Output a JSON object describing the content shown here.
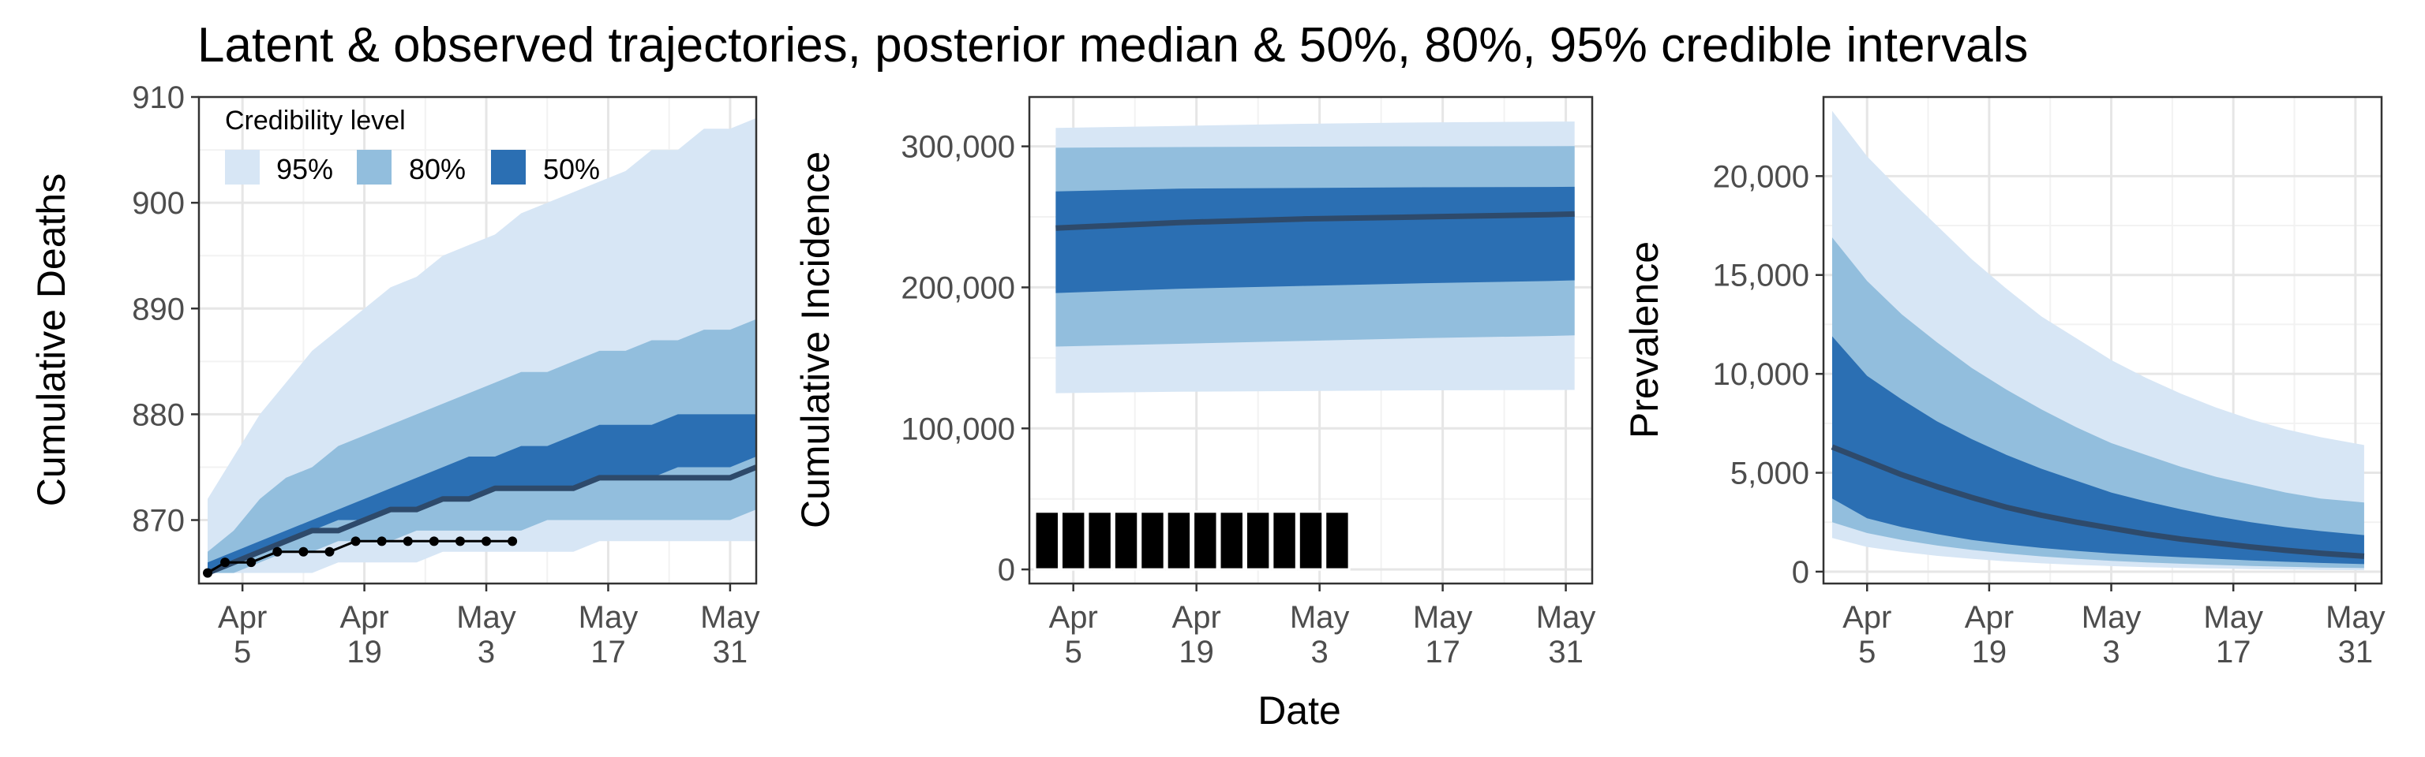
{
  "title": "Latent & observed trajectories, posterior median & 50%, 80%, 95% credible intervals",
  "xlabel": "Date",
  "colors": {
    "band95": "#d7e6f5",
    "band80": "#92bedd",
    "band50": "#2b6fb3",
    "median": "#2e4a6b",
    "observed": "#000000",
    "grid_major": "#e6e6e6",
    "grid_minor": "#f2f2f2"
  },
  "legend": {
    "title": "Credibility level",
    "items": [
      "95%",
      "80%",
      "50%"
    ],
    "placement": "top-left inside first panel"
  },
  "chart_data": [
    {
      "type": "area",
      "panel": "deaths",
      "ylabel": "Cumulative Deaths",
      "x_axis": "date",
      "xlim": [
        "2020-03-31",
        "2020-06-03"
      ],
      "ylim": [
        864,
        910
      ],
      "yticks": [
        870,
        880,
        890,
        900,
        910
      ],
      "yticklabels": [
        "870",
        "880",
        "890",
        "900",
        "910"
      ],
      "xticks": [
        "2020-04-05",
        "2020-04-19",
        "2020-05-03",
        "2020-05-17",
        "2020-05-31"
      ],
      "xticklabels": [
        [
          "Apr",
          "5"
        ],
        [
          "Apr",
          "19"
        ],
        [
          "May",
          "3"
        ],
        [
          "May",
          "17"
        ],
        [
          "May",
          "31"
        ]
      ],
      "grid": true,
      "x": [
        "2020-04-01",
        "2020-04-04",
        "2020-04-07",
        "2020-04-10",
        "2020-04-13",
        "2020-04-16",
        "2020-04-19",
        "2020-04-22",
        "2020-04-25",
        "2020-04-28",
        "2020-05-01",
        "2020-05-04",
        "2020-05-07",
        "2020-05-10",
        "2020-05-13",
        "2020-05-16",
        "2020-05-19",
        "2020-05-22",
        "2020-05-25",
        "2020-05-28",
        "2020-05-31",
        "2020-06-03"
      ],
      "q025": [
        865,
        865,
        865,
        865,
        865,
        866,
        866,
        866,
        866,
        867,
        867,
        867,
        867,
        867,
        867,
        868,
        868,
        868,
        868,
        868,
        868,
        868
      ],
      "q10": [
        865,
        865,
        866,
        867,
        867,
        868,
        868,
        868,
        869,
        869,
        869,
        869,
        869,
        870,
        870,
        870,
        870,
        870,
        870,
        870,
        870,
        871
      ],
      "q25": [
        865,
        866,
        867,
        868,
        869,
        870,
        870,
        871,
        871,
        872,
        872,
        873,
        873,
        873,
        873,
        874,
        874,
        874,
        875,
        875,
        875,
        876
      ],
      "median": [
        865,
        866,
        867,
        868,
        869,
        869,
        870,
        871,
        871,
        872,
        872,
        873,
        873,
        873,
        873,
        874,
        874,
        874,
        874,
        874,
        874,
        875
      ],
      "q75": [
        866,
        867,
        868,
        869,
        870,
        871,
        872,
        873,
        874,
        875,
        876,
        876,
        877,
        877,
        878,
        879,
        879,
        879,
        880,
        880,
        880,
        880
      ],
      "q90": [
        867,
        869,
        872,
        874,
        875,
        877,
        878,
        879,
        880,
        881,
        882,
        883,
        884,
        884,
        885,
        886,
        886,
        887,
        887,
        888,
        888,
        889
      ],
      "q975": [
        872,
        876,
        880,
        883,
        886,
        888,
        890,
        892,
        893,
        895,
        896,
        897,
        899,
        900,
        901,
        902,
        903,
        905,
        905,
        907,
        907,
        908
      ],
      "observed_x": [
        "2020-04-01",
        "2020-04-03",
        "2020-04-06",
        "2020-04-09",
        "2020-04-12",
        "2020-04-15",
        "2020-04-18",
        "2020-04-21",
        "2020-04-24",
        "2020-04-27",
        "2020-04-30",
        "2020-05-03",
        "2020-05-06"
      ],
      "observed_y": [
        865,
        866,
        866,
        867,
        867,
        867,
        868,
        868,
        868,
        868,
        868,
        868,
        868
      ]
    },
    {
      "type": "area",
      "panel": "incidence",
      "ylabel": "Cumulative Incidence",
      "x_axis": "date",
      "xlim": [
        "2020-03-31",
        "2020-06-03"
      ],
      "ylim": [
        -10000,
        335000
      ],
      "yticks": [
        0,
        100000,
        200000,
        300000
      ],
      "yticklabels": [
        "0",
        "100,000",
        "200,000",
        "300,000"
      ],
      "xticks": [
        "2020-04-05",
        "2020-04-19",
        "2020-05-03",
        "2020-05-17",
        "2020-05-31"
      ],
      "xticklabels": [
        [
          "Apr",
          "5"
        ],
        [
          "Apr",
          "19"
        ],
        [
          "May",
          "3"
        ],
        [
          "May",
          "17"
        ],
        [
          "May",
          "31"
        ]
      ],
      "grid": true,
      "x": [
        "2020-04-03",
        "2020-04-17",
        "2020-05-01",
        "2020-05-15",
        "2020-05-29",
        "2020-06-01"
      ],
      "q025": [
        125000,
        126000,
        126500,
        127000,
        127200,
        127300
      ],
      "q10": [
        158000,
        160000,
        162000,
        164000,
        165500,
        166000
      ],
      "q25": [
        196000,
        199000,
        201000,
        203000,
        204500,
        205000
      ],
      "median": [
        242000,
        246000,
        248500,
        250000,
        251500,
        252000
      ],
      "q75": [
        268000,
        270000,
        270500,
        271000,
        271200,
        271300
      ],
      "q90": [
        299000,
        299500,
        299800,
        300000,
        300100,
        300200
      ],
      "q975": [
        313000,
        314500,
        316000,
        317000,
        317500,
        317600
      ],
      "observed_bars_x": [
        "2020-04-02",
        "2020-04-05",
        "2020-04-08",
        "2020-04-11",
        "2020-04-14",
        "2020-04-17",
        "2020-04-20",
        "2020-04-23",
        "2020-04-26",
        "2020-04-29",
        "2020-05-02",
        "2020-05-05"
      ],
      "observed_bars_y": [
        41000,
        41000,
        41000,
        41000,
        41000,
        41000,
        41000,
        41000,
        41000,
        41000,
        41000,
        41000
      ]
    },
    {
      "type": "area",
      "panel": "prevalence",
      "ylabel": "Prevalence",
      "x_axis": "date",
      "xlim": [
        "2020-03-31",
        "2020-06-03"
      ],
      "ylim": [
        -600,
        24000
      ],
      "yticks": [
        0,
        5000,
        10000,
        15000,
        20000
      ],
      "yticklabels": [
        "0",
        "5,000",
        "10,000",
        "15,000",
        "20,000"
      ],
      "xticks": [
        "2020-04-05",
        "2020-04-19",
        "2020-05-03",
        "2020-05-17",
        "2020-05-31"
      ],
      "xticklabels": [
        [
          "Apr",
          "5"
        ],
        [
          "Apr",
          "19"
        ],
        [
          "May",
          "3"
        ],
        [
          "May",
          "17"
        ],
        [
          "May",
          "31"
        ]
      ],
      "grid": true,
      "x": [
        "2020-04-01",
        "2020-04-05",
        "2020-04-09",
        "2020-04-13",
        "2020-04-17",
        "2020-04-21",
        "2020-04-25",
        "2020-04-29",
        "2020-05-03",
        "2020-05-07",
        "2020-05-11",
        "2020-05-15",
        "2020-05-19",
        "2020-05-23",
        "2020-05-27",
        "2020-06-01"
      ],
      "q025": [
        1700,
        1250,
        1000,
        800,
        650,
        520,
        420,
        340,
        280,
        230,
        190,
        160,
        130,
        110,
        90,
        75
      ],
      "q10": [
        2500,
        1950,
        1600,
        1320,
        1100,
        920,
        770,
        650,
        550,
        470,
        400,
        340,
        290,
        250,
        210,
        180
      ],
      "q25": [
        3700,
        2700,
        2250,
        1900,
        1600,
        1380,
        1200,
        1050,
        920,
        820,
        730,
        650,
        570,
        500,
        440,
        380
      ],
      "median": [
        6300,
        5600,
        4900,
        4300,
        3750,
        3250,
        2850,
        2500,
        2200,
        1900,
        1650,
        1450,
        1250,
        1080,
        930,
        780
      ],
      "q75": [
        11900,
        9900,
        8700,
        7600,
        6700,
        5900,
        5200,
        4600,
        4000,
        3550,
        3150,
        2800,
        2500,
        2250,
        2050,
        1850
      ],
      "q90": [
        16900,
        14700,
        13000,
        11600,
        10300,
        9200,
        8200,
        7300,
        6500,
        5900,
        5300,
        4800,
        4400,
        4000,
        3700,
        3500
      ],
      "q975": [
        23300,
        21000,
        19200,
        17500,
        15800,
        14300,
        12900,
        11800,
        10700,
        9800,
        9000,
        8300,
        7700,
        7200,
        6800,
        6400
      ]
    }
  ]
}
